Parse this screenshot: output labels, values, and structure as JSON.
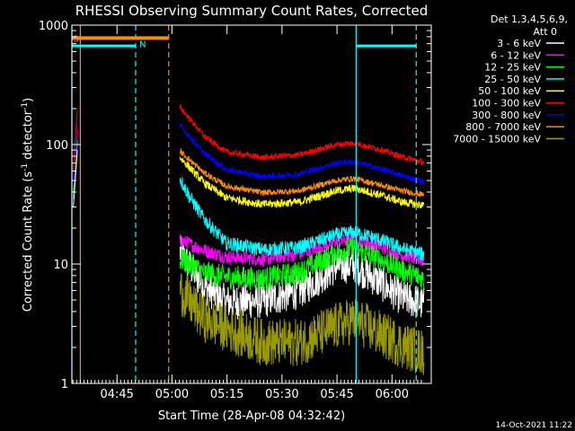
{
  "chart_data": {
    "type": "line",
    "title": "RHESSI Observing Summary Count Rates, Corrected",
    "xlabel": "Start Time (28-Apr-08 04:32:42)",
    "ylabel_main": "Corrected Count Rate (s",
    "ylabel_sup1": "-1",
    "ylabel_mid": " detector",
    "ylabel_sup2": "-1",
    "ylabel_end": ")",
    "y_scale": "log",
    "ylim": [
      1,
      1000
    ],
    "xlim_minutes": [
      0,
      98
    ],
    "y_ticks": [
      {
        "value": 1,
        "label": "1"
      },
      {
        "value": 10,
        "label": "10"
      },
      {
        "value": 100,
        "label": "100"
      },
      {
        "value": 1000,
        "label": "1000"
      }
    ],
    "x_ticks": [
      {
        "minute": 12.3,
        "label": "04:45"
      },
      {
        "minute": 27.3,
        "label": "05:00"
      },
      {
        "minute": 42.3,
        "label": "05:15"
      },
      {
        "minute": 57.3,
        "label": "05:30"
      },
      {
        "minute": 72.3,
        "label": "05:45"
      },
      {
        "minute": 87.3,
        "label": "06:00"
      }
    ],
    "legend_placement": "top-right, outside plot",
    "legend_header": [
      "Det 1,3,4,5,6,9,",
      "Att 0"
    ],
    "series": [
      {
        "name": "3 - 6 keV",
        "color": "#ffffff",
        "knots": [
          [
            29.5,
            12.5
          ],
          [
            36,
            6.5
          ],
          [
            42,
            4.8
          ],
          [
            52,
            4.9
          ],
          [
            62,
            5.9
          ],
          [
            72,
            9.5
          ],
          [
            77,
            9.8
          ],
          [
            84,
            7
          ],
          [
            90,
            5.2
          ],
          [
            96,
            4.6
          ]
        ],
        "noise": 0.3
      },
      {
        "name": "6 - 12 keV",
        "color": "#ff00ff",
        "knots": [
          [
            29.5,
            16
          ],
          [
            36,
            13
          ],
          [
            42,
            11.5
          ],
          [
            52,
            11
          ],
          [
            62,
            12.2
          ],
          [
            72,
            15.5
          ],
          [
            77,
            16
          ],
          [
            84,
            14
          ],
          [
            90,
            12
          ],
          [
            96,
            10.8
          ]
        ],
        "noise": 0.12
      },
      {
        "name": "12 - 25 keV",
        "color": "#00ff00",
        "knots": [
          [
            29.5,
            11
          ],
          [
            36,
            8.5
          ],
          [
            42,
            7.8
          ],
          [
            52,
            7.5
          ],
          [
            62,
            8.5
          ],
          [
            72,
            12.5
          ],
          [
            77,
            13.5
          ],
          [
            84,
            11
          ],
          [
            90,
            8.8
          ],
          [
            96,
            7.5
          ]
        ],
        "noise": 0.2
      },
      {
        "name": "25 - 50 keV",
        "color": "#00ffff",
        "knots": [
          [
            29.5,
            52
          ],
          [
            32,
            37
          ],
          [
            36,
            24
          ],
          [
            42,
            15
          ],
          [
            52,
            13.2
          ],
          [
            62,
            13.8
          ],
          [
            72,
            17.5
          ],
          [
            77,
            18.5
          ],
          [
            84,
            16
          ],
          [
            90,
            13.5
          ],
          [
            96,
            12
          ]
        ],
        "noise": 0.12
      },
      {
        "name": "50 - 100 keV",
        "color": "#ffff00",
        "knots": [
          [
            29.5,
            78
          ],
          [
            36,
            48
          ],
          [
            42,
            36
          ],
          [
            52,
            31.5
          ],
          [
            62,
            33
          ],
          [
            72,
            41
          ],
          [
            77,
            43
          ],
          [
            84,
            38
          ],
          [
            90,
            33
          ],
          [
            96,
            31
          ]
        ],
        "noise": 0.07
      },
      {
        "name": "100 - 300 keV",
        "color": "#ff0000",
        "knots": [
          [
            29.5,
            205
          ],
          [
            36,
            118
          ],
          [
            42,
            87
          ],
          [
            52,
            78
          ],
          [
            62,
            82
          ],
          [
            72,
            100
          ],
          [
            77,
            103
          ],
          [
            84,
            91
          ],
          [
            90,
            79
          ],
          [
            96,
            71
          ]
        ],
        "noise": 0.05
      },
      {
        "name": "300 - 800 keV",
        "color": "#0000ff",
        "knots": [
          [
            29.5,
            145
          ],
          [
            36,
            85
          ],
          [
            42,
            62
          ],
          [
            52,
            54
          ],
          [
            62,
            57
          ],
          [
            72,
            70
          ],
          [
            77,
            72
          ],
          [
            84,
            63
          ],
          [
            90,
            55
          ],
          [
            96,
            49
          ]
        ],
        "noise": 0.05
      },
      {
        "name": "800 - 7000 keV",
        "color": "#ff8c00",
        "knots": [
          [
            29.5,
            88
          ],
          [
            36,
            58
          ],
          [
            42,
            45
          ],
          [
            52,
            39.5
          ],
          [
            62,
            41
          ],
          [
            72,
            50
          ],
          [
            77,
            52
          ],
          [
            84,
            46
          ],
          [
            90,
            41
          ],
          [
            96,
            38
          ]
        ],
        "noise": 0.05
      },
      {
        "name": "7000 - 15000 keV",
        "color": "#999900",
        "knots": [
          [
            29.5,
            6
          ],
          [
            36,
            3.5
          ],
          [
            42,
            2.9
          ],
          [
            52,
            2.2
          ],
          [
            62,
            2.2
          ],
          [
            72,
            3
          ],
          [
            77,
            3.4
          ],
          [
            84,
            2.6
          ],
          [
            90,
            2.1
          ],
          [
            96,
            1.8
          ]
        ],
        "noise": 0.4
      }
    ],
    "early_spikes": [
      {
        "color": "#ff00ff",
        "points": [
          [
            0.4,
            40
          ],
          [
            1.0,
            70
          ],
          [
            1.5,
            130
          ]
        ]
      },
      {
        "color": "#00ff00",
        "points": [
          [
            0.4,
            35
          ],
          [
            1.0,
            60
          ],
          [
            1.5,
            110
          ]
        ]
      },
      {
        "color": "#ff0000",
        "points": [
          [
            0.4,
            60
          ],
          [
            1.0,
            120
          ],
          [
            1.5,
            200
          ]
        ]
      },
      {
        "color": "#0000ff",
        "points": [
          [
            0.4,
            45
          ],
          [
            1.0,
            80
          ],
          [
            1.5,
            150
          ]
        ]
      },
      {
        "color": "#ffffff",
        "points": [
          [
            0.4,
            30
          ],
          [
            1.0,
            55
          ],
          [
            1.5,
            90
          ]
        ]
      }
    ],
    "vertical_lines": [
      {
        "minute": 0.0,
        "color": "#00ffff",
        "style": "solid"
      },
      {
        "minute": 2.3,
        "color": "#ff8c00",
        "style": "solid"
      },
      {
        "minute": 17.4,
        "color": "#00ffff",
        "style": "dashed"
      },
      {
        "minute": 26.4,
        "color": "#ff8c00",
        "style": "dashed"
      },
      {
        "minute": 77.5,
        "color": "#00ffff",
        "style": "solid"
      },
      {
        "minute": 93.9,
        "color": "#00ffff",
        "style": "dashed"
      }
    ],
    "flag_bars": [
      {
        "from": 0,
        "to": 17.4,
        "value": 670,
        "color": "#00ffff",
        "width": 3
      },
      {
        "from": 0,
        "to": 26.4,
        "value": 780,
        "color": "#ff8c00",
        "width": 4
      },
      {
        "from": 77.5,
        "to": 93.9,
        "value": 670,
        "color": "#00ffff",
        "width": 3
      }
    ],
    "annotations": [
      {
        "text": "S",
        "minute": 0.3,
        "value": 780,
        "color": "#ff8c00"
      },
      {
        "text": "N",
        "minute": 18.4,
        "value": 700,
        "color": "#00ffff"
      }
    ],
    "timestamp": "14-Oct-2021 11:22"
  }
}
